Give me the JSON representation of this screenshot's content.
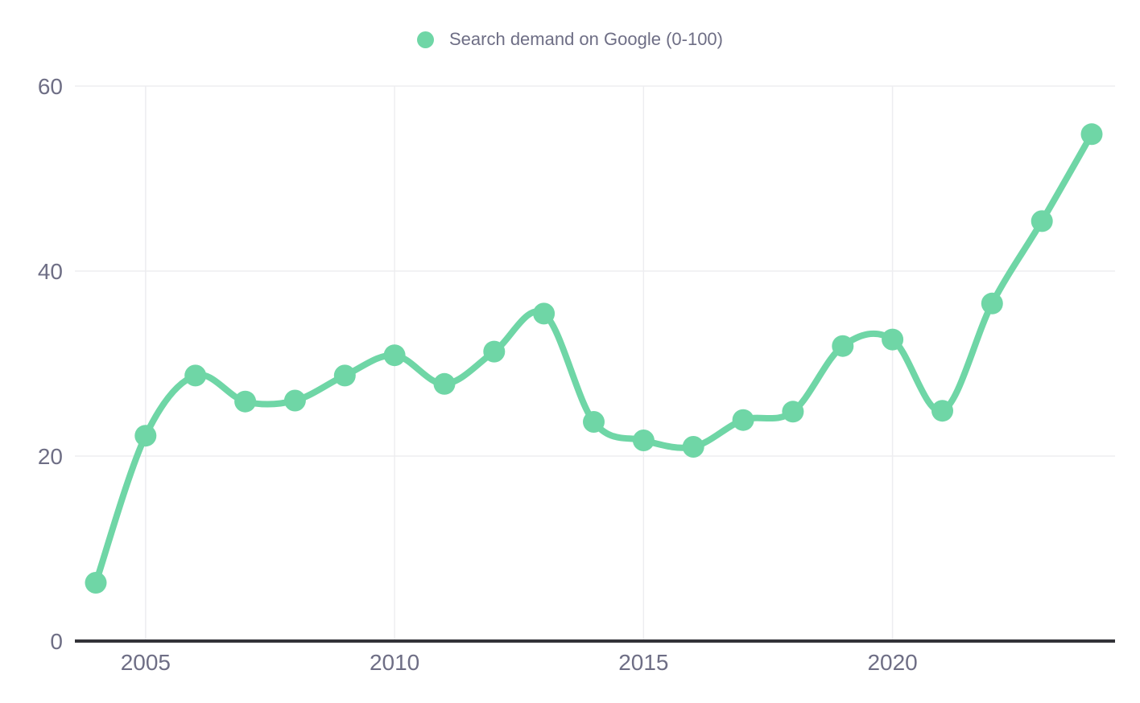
{
  "legend": {
    "label": "Search demand on Google (0-100)"
  },
  "colors": {
    "series": "#6fd6a6",
    "tick_text": "#6e6e85",
    "axis_line": "#333338",
    "grid_line": "#ededf0",
    "background": "#ffffff"
  },
  "chart_data": {
    "type": "line",
    "title": "",
    "legend_entries": [
      "Search demand on Google (0-100)"
    ],
    "legend_position": "top-center",
    "smooth": true,
    "markers": true,
    "grid": true,
    "x": [
      2004,
      2005,
      2006,
      2007,
      2008,
      2009,
      2010,
      2011,
      2012,
      2013,
      2014,
      2015,
      2016,
      2017,
      2018,
      2019,
      2020,
      2021,
      2022,
      2023,
      2024
    ],
    "series": [
      {
        "name": "Search demand on Google (0-100)",
        "values": [
          6.3,
          22.2,
          28.7,
          25.9,
          26.0,
          28.7,
          30.9,
          27.8,
          31.3,
          35.4,
          23.7,
          21.7,
          21.0,
          23.9,
          24.8,
          31.9,
          32.6,
          24.9,
          36.5,
          45.4,
          54.8
        ]
      }
    ],
    "x_ticks": [
      2005,
      2010,
      2015,
      2020
    ],
    "y_ticks": [
      0,
      20,
      40,
      60
    ],
    "xlabel": "",
    "ylabel": "",
    "ylim": [
      0,
      60
    ]
  }
}
